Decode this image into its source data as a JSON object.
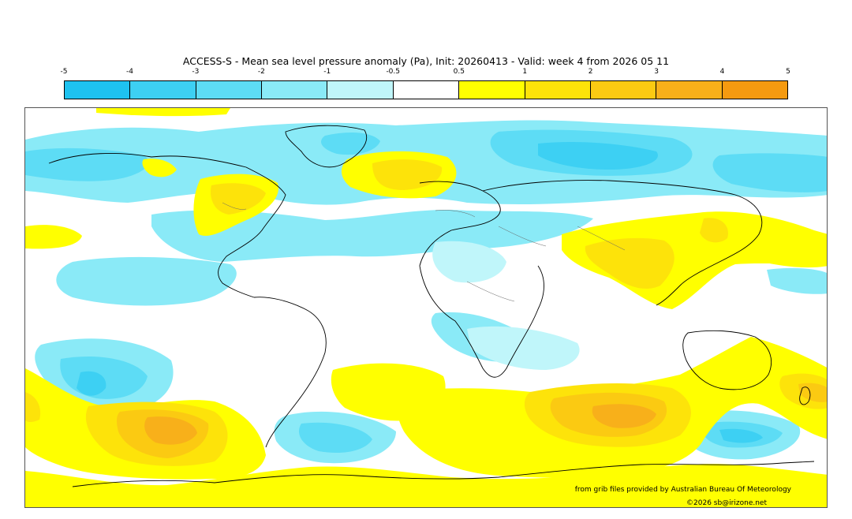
{
  "title": "ACCESS-S - Mean sea level pressure anomaly (Pa), Init: 20260413 - Valid: week 4 from 2026 05 11",
  "colorbar": {
    "ticks": [
      "-5",
      "-4",
      "-3",
      "-2",
      "-1",
      "-0.5",
      "0.5",
      "1",
      "2",
      "3",
      "4",
      "5"
    ],
    "colors": [
      "#1ec2f0",
      "#3dd0f3",
      "#5ddcf5",
      "#8aeaf7",
      "#c0f6fa",
      "#ffffff",
      "#ffff00",
      "#fde30a",
      "#fbca12",
      "#f8b01a",
      "#f59a10"
    ]
  },
  "credit": "from grib files provided by Australian Bureau Of Meteorology",
  "copyright": "©2026 sb@irizone.net"
}
